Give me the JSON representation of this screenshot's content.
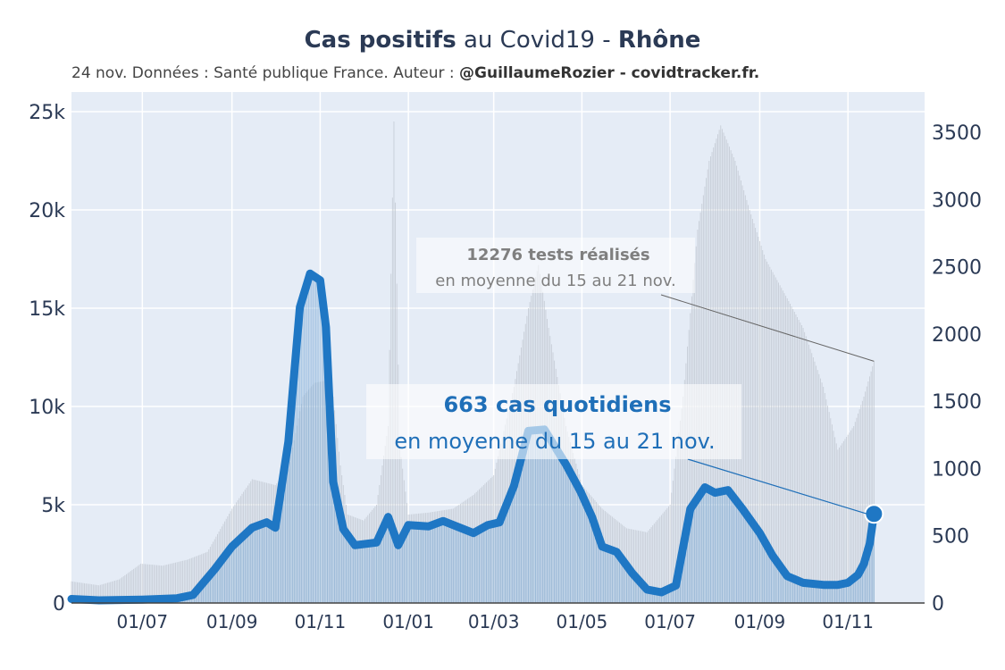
{
  "header": {
    "title_bold": "Cas positifs",
    "title_middle": " au Covid19 - ",
    "title_region": "Rhône",
    "subtitle_prefix": "24 nov. Données : Santé publique France. Auteur : ",
    "subtitle_author": "@GuillaumeRozier - covidtracker.fr."
  },
  "chart_data": {
    "type": "line",
    "title": "Cas positifs au Covid19 - Rhône",
    "subtitle": "24 nov. Données : Santé publique France. Auteur : @GuillaumeRozier - covidtracker.fr.",
    "x_range": [
      "2020-05-13",
      "2021-12-24"
    ],
    "x_ticks": [
      {
        "date": "2020-07-01",
        "label": "01/07"
      },
      {
        "date": "2020-09-01",
        "label": "01/09"
      },
      {
        "date": "2020-11-01",
        "label": "01/11"
      },
      {
        "date": "2021-01-01",
        "label": "01/01"
      },
      {
        "date": "2021-03-01",
        "label": "01/03"
      },
      {
        "date": "2021-05-01",
        "label": "01/05"
      },
      {
        "date": "2021-07-01",
        "label": "01/07"
      },
      {
        "date": "2021-09-01",
        "label": "01/09"
      },
      {
        "date": "2021-11-01",
        "label": "01/11"
      }
    ],
    "y_left": {
      "range": [
        0,
        26000
      ],
      "ticks": [
        0,
        5000,
        10000,
        15000,
        20000,
        25000
      ],
      "tick_labels": [
        "0",
        "5k",
        "10k",
        "15k",
        "20k",
        "25k"
      ]
    },
    "y_right": {
      "range": [
        0,
        3800
      ],
      "ticks": [
        0,
        500,
        1000,
        1500,
        2000,
        2500,
        3000,
        3500
      ],
      "tick_labels": [
        "0",
        "500",
        "1000",
        "1500",
        "2000",
        "2500",
        "3000",
        "3500"
      ]
    },
    "grid": true,
    "series": [
      {
        "kind": "tests",
        "axis": "left",
        "color": "#bcc3cc",
        "points": [
          [
            "2020-05-13",
            1100
          ],
          [
            "2020-06-01",
            900
          ],
          [
            "2020-06-15",
            1200
          ],
          [
            "2020-06-30",
            2000
          ],
          [
            "2020-07-15",
            1900
          ],
          [
            "2020-08-01",
            2200
          ],
          [
            "2020-08-15",
            2600
          ],
          [
            "2020-09-01",
            4800
          ],
          [
            "2020-09-15",
            6300
          ],
          [
            "2020-10-01",
            6000
          ],
          [
            "2020-10-10",
            6800
          ],
          [
            "2020-10-20",
            10500
          ],
          [
            "2020-10-28",
            11200
          ],
          [
            "2020-11-04",
            11300
          ],
          [
            "2020-11-10",
            10500
          ],
          [
            "2020-11-15",
            7000
          ],
          [
            "2020-11-20",
            4500
          ],
          [
            "2020-12-01",
            4200
          ],
          [
            "2020-12-10",
            5000
          ],
          [
            "2020-12-18",
            9000
          ],
          [
            "2020-12-22",
            24500
          ],
          [
            "2020-12-26",
            8000
          ],
          [
            "2021-01-01",
            4500
          ],
          [
            "2021-01-15",
            4600
          ],
          [
            "2021-02-01",
            4800
          ],
          [
            "2021-02-15",
            5500
          ],
          [
            "2021-03-01",
            6500
          ],
          [
            "2021-03-15",
            11000
          ],
          [
            "2021-03-25",
            15000
          ],
          [
            "2021-04-01",
            17200
          ],
          [
            "2021-04-08",
            14000
          ],
          [
            "2021-04-20",
            9000
          ],
          [
            "2021-05-01",
            6000
          ],
          [
            "2021-05-15",
            4800
          ],
          [
            "2021-06-01",
            3800
          ],
          [
            "2021-06-15",
            3600
          ],
          [
            "2021-07-01",
            5000
          ],
          [
            "2021-07-10",
            10500
          ],
          [
            "2021-07-20",
            19000
          ],
          [
            "2021-07-28",
            22500
          ],
          [
            "2021-08-05",
            24300
          ],
          [
            "2021-08-15",
            22500
          ],
          [
            "2021-08-25",
            20000
          ],
          [
            "2021-09-05",
            17500
          ],
          [
            "2021-09-20",
            15500
          ],
          [
            "2021-10-01",
            14000
          ],
          [
            "2021-10-15",
            11000
          ],
          [
            "2021-10-25",
            7800
          ],
          [
            "2021-11-05",
            9000
          ],
          [
            "2021-11-12",
            10500
          ],
          [
            "2021-11-19",
            12300
          ]
        ]
      },
      {
        "kind": "cases",
        "axis": "right",
        "color": "#1f77c4",
        "points": [
          [
            "2020-05-13",
            30
          ],
          [
            "2020-06-01",
            20
          ],
          [
            "2020-07-01",
            25
          ],
          [
            "2020-07-25",
            35
          ],
          [
            "2020-08-05",
            60
          ],
          [
            "2020-08-20",
            250
          ],
          [
            "2020-09-01",
            420
          ],
          [
            "2020-09-15",
            560
          ],
          [
            "2020-09-25",
            600
          ],
          [
            "2020-10-01",
            560
          ],
          [
            "2020-10-10",
            1200
          ],
          [
            "2020-10-18",
            2200
          ],
          [
            "2020-10-25",
            2450
          ],
          [
            "2020-11-01",
            2400
          ],
          [
            "2020-11-05",
            2050
          ],
          [
            "2020-11-10",
            900
          ],
          [
            "2020-11-17",
            550
          ],
          [
            "2020-11-25",
            430
          ],
          [
            "2020-12-10",
            450
          ],
          [
            "2020-12-18",
            640
          ],
          [
            "2020-12-25",
            430
          ],
          [
            "2021-01-01",
            580
          ],
          [
            "2021-01-15",
            570
          ],
          [
            "2021-01-25",
            610
          ],
          [
            "2021-02-01",
            580
          ],
          [
            "2021-02-15",
            520
          ],
          [
            "2021-02-25",
            580
          ],
          [
            "2021-03-05",
            600
          ],
          [
            "2021-03-15",
            870
          ],
          [
            "2021-03-25",
            1280
          ],
          [
            "2021-04-05",
            1290
          ],
          [
            "2021-04-20",
            1030
          ],
          [
            "2021-04-30",
            830
          ],
          [
            "2021-05-08",
            640
          ],
          [
            "2021-05-15",
            420
          ],
          [
            "2021-05-25",
            380
          ],
          [
            "2021-06-05",
            220
          ],
          [
            "2021-06-15",
            100
          ],
          [
            "2021-06-25",
            80
          ],
          [
            "2021-07-05",
            130
          ],
          [
            "2021-07-15",
            700
          ],
          [
            "2021-07-25",
            860
          ],
          [
            "2021-08-01",
            820
          ],
          [
            "2021-08-10",
            840
          ],
          [
            "2021-08-20",
            700
          ],
          [
            "2021-09-01",
            520
          ],
          [
            "2021-09-10",
            350
          ],
          [
            "2021-09-20",
            200
          ],
          [
            "2021-10-01",
            150
          ],
          [
            "2021-10-15",
            135
          ],
          [
            "2021-10-25",
            135
          ],
          [
            "2021-11-01",
            150
          ],
          [
            "2021-11-08",
            210
          ],
          [
            "2021-11-12",
            290
          ],
          [
            "2021-11-16",
            440
          ],
          [
            "2021-11-19",
            663
          ]
        ]
      }
    ],
    "annotations": [
      {
        "bold": "12276 tests réalisés",
        "text": "en moyenne du 15 au 21 nov.",
        "color": "#7f7f7f"
      },
      {
        "bold": "663 cas quotidiens",
        "text": "en moyenne du 15 au 21 nov.",
        "color": "#1f6fb8"
      }
    ]
  }
}
